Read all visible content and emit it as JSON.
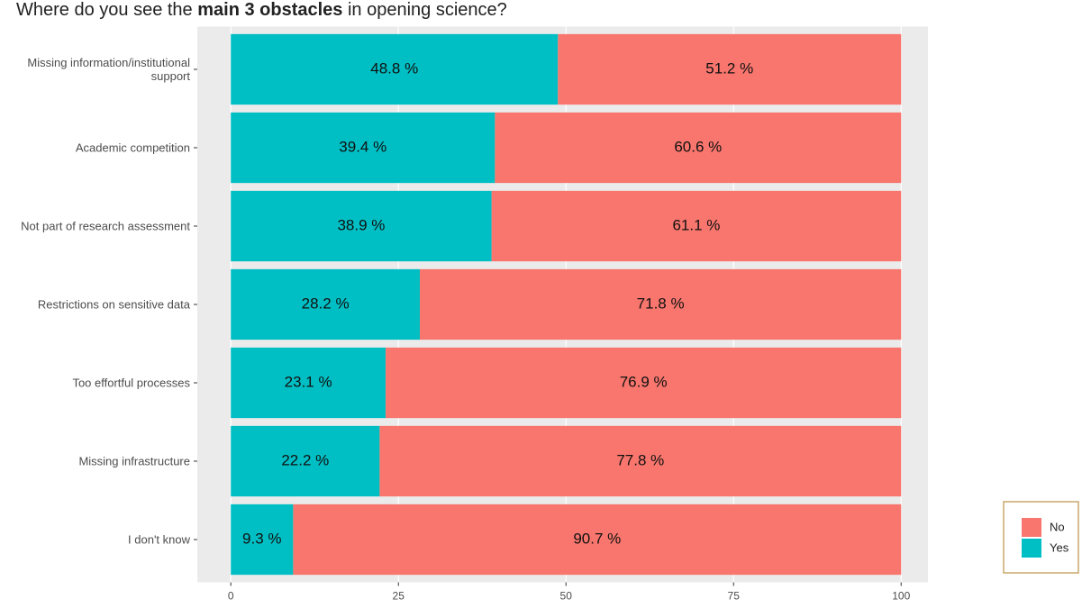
{
  "chart_data": {
    "type": "stacked_barh",
    "title": [
      "Where do you see the ",
      "main 3 obstacles",
      " in opening science?"
    ],
    "categories": [
      "Missing information/institutional support",
      "Academic competition",
      "Not part of research assessment",
      "Restrictions on sensitive data",
      "Too effortful processes",
      "Missing infrastructure",
      "I don't know"
    ],
    "series": [
      {
        "name": "Yes",
        "color": "#00bfc4",
        "values": [
          48.8,
          39.4,
          38.9,
          28.2,
          23.1,
          22.2,
          9.3
        ],
        "value_labels": [
          "48.8 %",
          "39.4 %",
          "38.9 %",
          "28.2 %",
          "23.1 %",
          "22.2 %",
          "9.3 %"
        ]
      },
      {
        "name": "No",
        "color": "#f8766d",
        "values": [
          51.2,
          60.6,
          61.1,
          71.8,
          76.9,
          77.8,
          90.7
        ],
        "value_labels": [
          "51.2 %",
          "60.6 %",
          "61.1 %",
          "71.8 %",
          "76.9 %",
          "77.8 %",
          "90.7 %"
        ]
      }
    ],
    "xlim": [
      -5,
      104
    ],
    "xticks": [
      0,
      25,
      50,
      75,
      100
    ],
    "grid": true,
    "legend_order": [
      "No",
      "Yes"
    ],
    "legend_position": "bottom-right"
  }
}
